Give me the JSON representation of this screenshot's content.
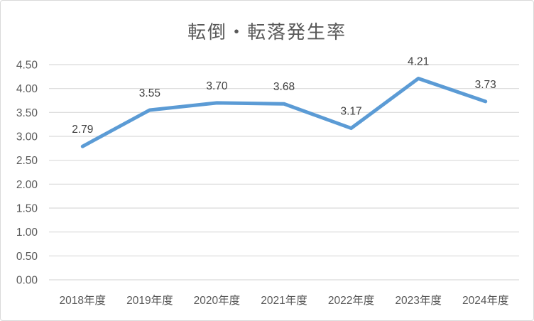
{
  "chart_data": {
    "type": "line",
    "title": "転倒・転落発生率",
    "categories": [
      "2018年度",
      "2019年度",
      "2020年度",
      "2021年度",
      "2022年度",
      "2023年度",
      "2024年度"
    ],
    "values": [
      2.79,
      3.55,
      3.7,
      3.68,
      3.17,
      4.21,
      3.73
    ],
    "data_labels": [
      "2.79",
      "3.55",
      "3.70",
      "3.68",
      "3.17",
      "4.21",
      "3.73"
    ],
    "xlabel": "",
    "ylabel": "",
    "ylim": [
      0,
      4.5
    ],
    "ytick_step": 0.5,
    "ytick_labels": [
      "0.00",
      "0.50",
      "1.00",
      "1.50",
      "2.00",
      "2.50",
      "3.00",
      "3.50",
      "4.00",
      "4.50"
    ],
    "grid": true,
    "legend_position": "none",
    "colors": {
      "line": "#5B9BD5",
      "gridline": "#D9D9D9",
      "axis_text": "#595959",
      "data_label_text": "#404040",
      "title_text": "#595959",
      "background": "#FFFFFF",
      "border": "#D9D9D9"
    }
  }
}
